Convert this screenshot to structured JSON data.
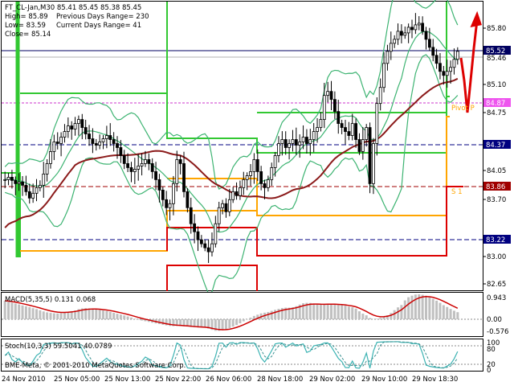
{
  "info": {
    "symbol_line": "FT_CL-Jan,M30  85.41 85.45 85.38 85.45",
    "high_line": "High= 85.89",
    "prev_range": "Previous Days Range= 230",
    "low_line": "Low= 83.59",
    "curr_range": "Current Days Range= 41",
    "close_line": "Close= 85.14"
  },
  "price_axis": {
    "ticks": [
      "85.80",
      "85.10",
      "84.75",
      "84.05",
      "83.70",
      "83.00",
      "82.65"
    ],
    "bid_top": "85.52",
    "bid_bottom": "85.46",
    "level_magenta": "84.87",
    "level_navy": "84.37",
    "level_red": "83.86",
    "level_blue": "83.22"
  },
  "pivot_labels": {
    "pivot": "Pivot P",
    "s1": "S 1"
  },
  "macd": {
    "label": "MACD(5,35,5) 0.131 0.068",
    "ticks": [
      "0.943",
      "0.00",
      "-0.576"
    ]
  },
  "stoch": {
    "label": "Stoch(10,3,3) 59.5041 40.0789",
    "ticks": [
      "100",
      "80",
      "20",
      "0"
    ]
  },
  "watermark": "BME-Meta, © 2001-2010 MetaQuotes Software Corp.",
  "time_axis": [
    "24 Nov 2010",
    "25 Nov 05:00",
    "25 Nov 13:00",
    "25 Nov 22:00",
    "26 Nov 06:00",
    "28 Nov 18:00",
    "29 Nov 02:00",
    "29 Nov 10:00",
    "29 Nov 18:30"
  ],
  "colors": {
    "background": "#ffffff",
    "candles": "#000000",
    "bollinger": "#3cb371",
    "ma": "#8b1a1a",
    "pivot": "#32c832",
    "support": "#ffa500",
    "resistance": "#dc0000",
    "macd_hist": "#c0c0c0",
    "macd_signal": "#cc0000",
    "stoch_main": "#3cb3b3",
    "forecast": "#dd0000"
  },
  "chart_data": {
    "type": "candlestick",
    "symbol": "FT_CL-Jan",
    "timeframe": "M30",
    "ylim": [
      82.5,
      86.05
    ],
    "close": [
      83.85,
      83.88,
      83.84,
      83.8,
      83.82,
      83.78,
      83.7,
      83.62,
      83.68,
      83.75,
      83.78,
      83.92,
      84.05,
      84.2,
      84.32,
      84.3,
      84.38,
      84.45,
      84.52,
      84.48,
      84.55,
      84.6,
      84.5,
      84.42,
      84.36,
      84.3,
      84.28,
      84.32,
      84.36,
      84.4,
      84.35,
      84.3,
      84.25,
      84.15,
      84.05,
      84.0,
      83.95,
      83.98,
      84.02,
      84.05,
      84.1,
      84.05,
      83.95,
      83.85,
      83.72,
      83.6,
      83.5,
      83.55,
      83.8,
      84.1,
      84.05,
      83.7,
      83.5,
      83.3,
      83.2,
      83.1,
      83.05,
      83.0,
      82.95,
      83.05,
      83.3,
      83.5,
      83.55,
      83.45,
      83.6,
      83.7,
      83.65,
      83.75,
      83.85,
      83.9,
      83.95,
      84.1,
      83.95,
      83.8,
      83.75,
      83.85,
      84.0,
      84.15,
      84.3,
      84.35,
      84.25,
      84.3,
      84.35,
      84.28,
      84.32,
      84.38,
      84.3,
      84.35,
      84.45,
      84.5,
      84.6,
      84.9,
      84.95,
      84.85,
      84.7,
      84.55,
      84.5,
      84.45,
      84.4,
      84.55,
      84.35,
      84.2,
      84.35,
      84.5,
      83.8,
      84.3,
      84.8,
      85.0,
      85.3,
      85.45,
      85.55,
      85.6,
      85.7,
      85.65,
      85.68,
      85.75,
      85.72,
      85.78,
      85.8,
      85.7,
      85.6,
      85.5,
      85.4,
      85.3,
      85.2,
      85.15,
      85.2,
      85.25,
      85.35,
      85.45
    ]
  }
}
